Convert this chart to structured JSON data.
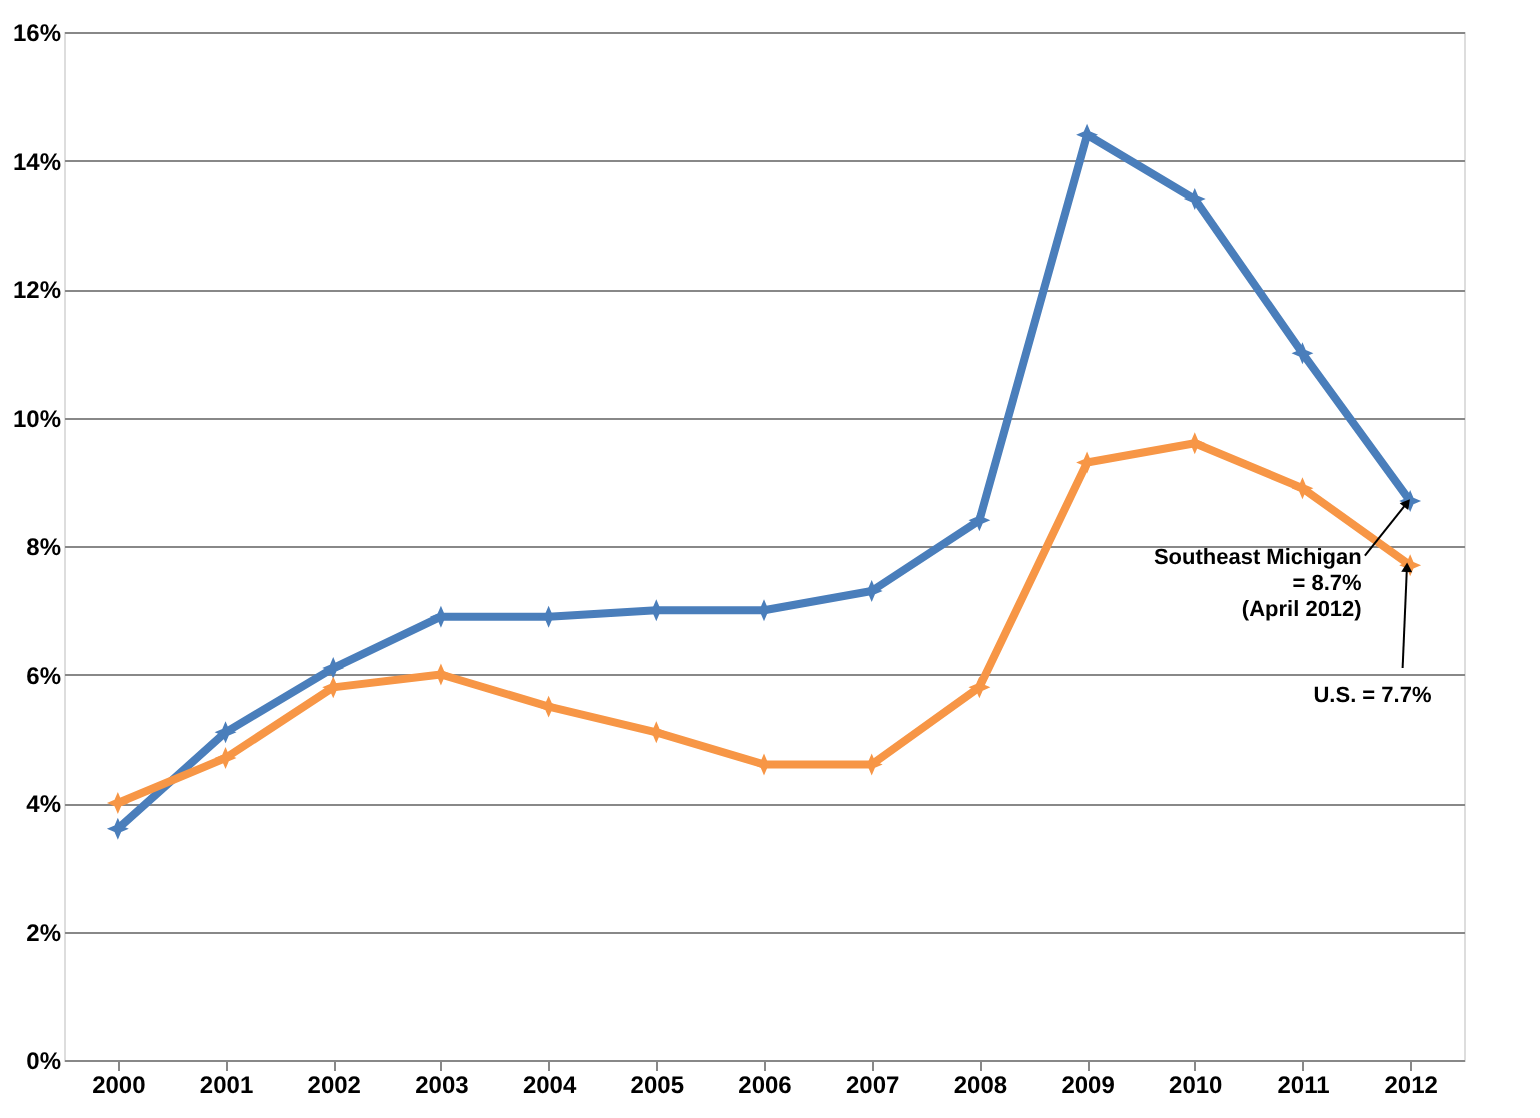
{
  "chart_data": {
    "type": "line",
    "categories": [
      "2000",
      "2001",
      "2002",
      "2003",
      "2004",
      "2005",
      "2006",
      "2007",
      "2008",
      "2009",
      "2010",
      "2011",
      "2012"
    ],
    "series": [
      {
        "color": "#4a7ebb",
        "values": [
          3.6,
          5.1,
          6.1,
          6.9,
          6.9,
          7.0,
          7.0,
          7.3,
          8.4,
          14.4,
          13.4,
          11.0,
          8.7
        ]
      },
      {
        "color": "#f79646",
        "values": [
          4.0,
          4.7,
          5.8,
          6.0,
          5.5,
          5.1,
          4.6,
          4.6,
          5.8,
          9.3,
          9.6,
          8.9,
          7.7
        ]
      }
    ],
    "ylim": [
      0,
      16
    ],
    "yticks": [
      {
        "value": 0,
        "label": "0%"
      },
      {
        "value": 2,
        "label": "2%"
      },
      {
        "value": 4,
        "label": "4%"
      },
      {
        "value": 6,
        "label": "6%"
      },
      {
        "value": 8,
        "label": "8%"
      },
      {
        "value": 10,
        "label": "10%"
      },
      {
        "value": 12,
        "label": "12%"
      },
      {
        "value": 14,
        "label": "14%"
      },
      {
        "value": 16,
        "label": "16%"
      }
    ],
    "grid": "y",
    "marker": "star",
    "line_style": "solid",
    "annotations": [
      {
        "text": "Southeast Michigan\n= 8.7%\n(April 2012)",
        "x": "2012",
        "y": 8.7
      },
      {
        "text": "U.S. = 7.7%",
        "x": "2012",
        "y": 7.7
      }
    ]
  }
}
